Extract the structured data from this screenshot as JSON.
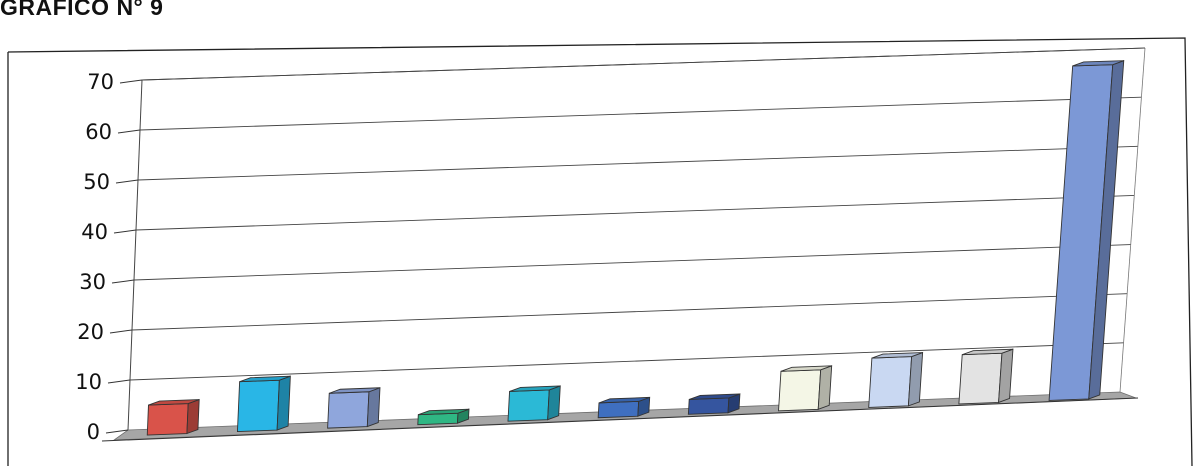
{
  "chart_data": {
    "type": "bar",
    "title": "GRAFICO N° 9",
    "xlabel": "",
    "ylabel": "",
    "ylim": [
      0,
      70
    ],
    "yticks": [
      0,
      10,
      20,
      30,
      40,
      50,
      60,
      70
    ],
    "grid": true,
    "legend": "none",
    "values": [
      6,
      10,
      7,
      2,
      6,
      3,
      3,
      8,
      10,
      10,
      68
    ],
    "colors": [
      "#d9534a",
      "#29b6e6",
      "#8fa6dc",
      "#2fb784",
      "#2bb9d6",
      "#3f6fc0",
      "#35559f",
      "#f4f6e6",
      "#c9d8f2",
      "#e3e3e3",
      "#7c98d6"
    ]
  }
}
